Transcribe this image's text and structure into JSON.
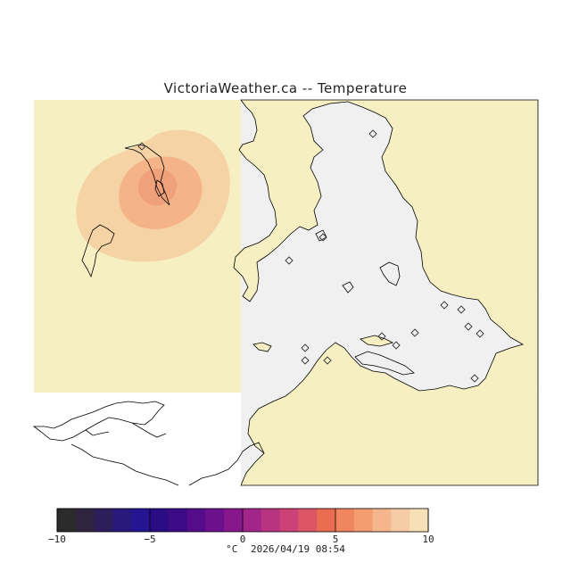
{
  "title": "VictoriaWeather.ca  --  Temperature",
  "colors": {
    "ocean": "#f0f0f0",
    "land_field": "#f6efc2",
    "warm_1": "#f6d3a5",
    "warm_2": "#f4b487",
    "coast": "#000000"
  },
  "colorbar": {
    "min": -10,
    "max": 10,
    "tick_labels": [
      "−10",
      "−5",
      "0",
      "5",
      "10"
    ],
    "tick_values": [
      -10,
      -5,
      0,
      5,
      10
    ],
    "colors": [
      "#2b2b2b",
      "#2e2440",
      "#2c1e5a",
      "#28197a",
      "#251592",
      "#2a0c84",
      "#3d0a86",
      "#550c8b",
      "#6c118c",
      "#87188c",
      "#a2258a",
      "#b93383",
      "#cc4276",
      "#dc5665",
      "#ea6c51",
      "#f08660",
      "#f39d70",
      "#f5b68e",
      "#f6cca6",
      "#f6e0b6"
    ],
    "unit": "°C"
  },
  "timestamp": "2026/04/19 08:54",
  "station_markers": "diamond-icon"
}
